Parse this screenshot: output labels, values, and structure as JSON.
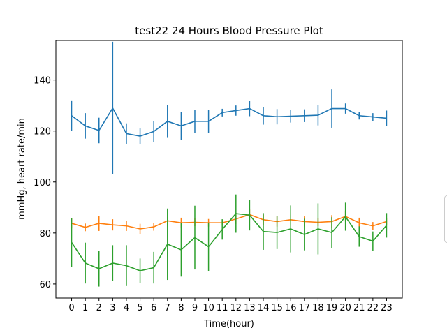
{
  "chart_data": {
    "type": "line",
    "title": "test22 24 Hours Blood Pressure Plot",
    "xlabel": "Time(hour)",
    "ylabel": "mmHg, heart rate/min",
    "x": [
      0,
      1,
      2,
      3,
      4,
      5,
      6,
      7,
      8,
      9,
      10,
      11,
      12,
      13,
      14,
      15,
      16,
      17,
      18,
      19,
      20,
      21,
      22,
      23
    ],
    "x_tick_labels": [
      "0",
      "1",
      "2",
      "3",
      "4",
      "5",
      "6",
      "7",
      "8",
      "9",
      "10",
      "11",
      "12",
      "13",
      "14",
      "15",
      "16",
      "17",
      "18",
      "19",
      "20",
      "21",
      "22",
      "23"
    ],
    "xlim": [
      -1.15,
      24.15
    ],
    "ylim": [
      54.5,
      155.5
    ],
    "y_ticks": [
      60,
      80,
      100,
      120,
      140
    ],
    "y_tick_labels": [
      "60",
      "80",
      "100",
      "120",
      "140"
    ],
    "grid": false,
    "series": [
      {
        "color": "#1f77b4",
        "values": [
          126,
          122,
          120.2,
          129,
          119,
          118,
          119.8,
          123.8,
          122,
          123.8,
          123.8,
          127.2,
          128,
          128.8,
          126,
          125.6,
          125.8,
          126,
          126.2,
          128.8,
          128.8,
          126,
          125.5,
          125
        ],
        "errors": [
          6,
          5,
          5,
          26,
          4,
          3,
          4,
          6.5,
          5.5,
          4.5,
          4.5,
          1.5,
          2,
          3,
          3.5,
          3,
          2.5,
          2.5,
          4,
          7.5,
          2,
          1.5,
          1.5,
          3
        ]
      },
      {
        "color": "#ff7f0e",
        "values": [
          83.8,
          82.2,
          83.8,
          83.2,
          82.8,
          81.6,
          82.4,
          84.8,
          84,
          84.2,
          84,
          84,
          85.5,
          87.2,
          85.2,
          84.5,
          85.2,
          84.5,
          84.2,
          84.5,
          86.5,
          84,
          82.8,
          84.5
        ],
        "errors": [
          2,
          1.5,
          3,
          2.2,
          2,
          2,
          1.5,
          1.5,
          2,
          1.5,
          1.5,
          1,
          2,
          2,
          2,
          2,
          2,
          2,
          1.5,
          2.5,
          2,
          2,
          1.5,
          1.5
        ]
      },
      {
        "color": "#2ca02c",
        "values": [
          76.3,
          68.2,
          66,
          68.2,
          67.2,
          65.2,
          66.4,
          75.6,
          73.4,
          78.2,
          74.6,
          81.4,
          87.6,
          87,
          80.6,
          80.2,
          81.6,
          79.4,
          81.6,
          80.2,
          86.4,
          78.6,
          76.8,
          83
        ],
        "errors": [
          9.5,
          8,
          7,
          7,
          8,
          4.8,
          6.2,
          14,
          10.5,
          12.5,
          9.5,
          4,
          7.5,
          6,
          7.2,
          6.5,
          9.2,
          6.2,
          10,
          6,
          5.5,
          4,
          3.8,
          4.8
        ]
      }
    ]
  }
}
